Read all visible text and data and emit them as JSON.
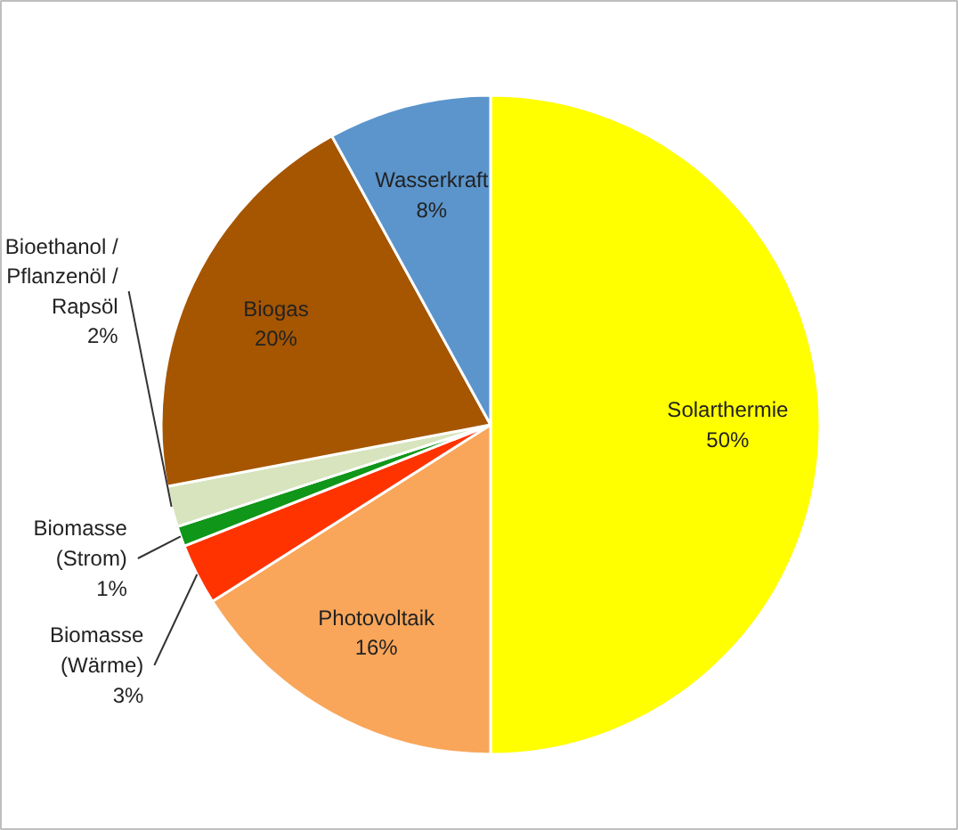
{
  "chart_data": {
    "type": "pie",
    "categories": [
      "Solarthermie",
      "Photovoltaik",
      "Biomasse (Wärme)",
      "Biomasse (Strom)",
      "Bioethanol / Pflanzenöl / Rapsöl",
      "Biogas",
      "Wasserkraft"
    ],
    "values": [
      50,
      16,
      3,
      1,
      2,
      20,
      8
    ],
    "value_labels": [
      "50%",
      "16%",
      "3%",
      "1%",
      "2%",
      "20%",
      "8%"
    ],
    "colors": [
      "#ffff00",
      "#f9a65a",
      "#ff3300",
      "#109618",
      "#d7e4bd",
      "#a65500",
      "#5b95cc"
    ]
  }
}
